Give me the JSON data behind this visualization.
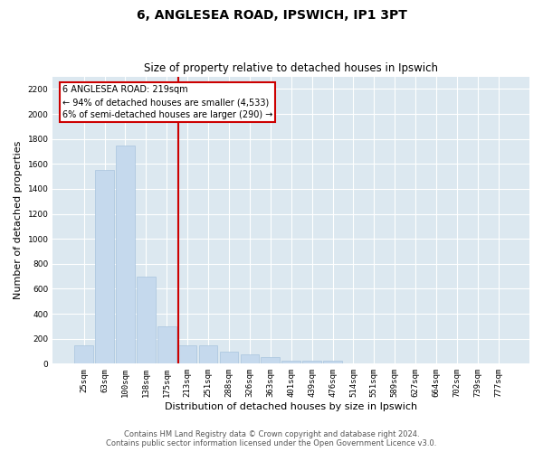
{
  "title": "6, ANGLESEA ROAD, IPSWICH, IP1 3PT",
  "subtitle": "Size of property relative to detached houses in Ipswich",
  "xlabel": "Distribution of detached houses by size in Ipswich",
  "ylabel": "Number of detached properties",
  "categories": [
    "25sqm",
    "63sqm",
    "100sqm",
    "138sqm",
    "175sqm",
    "213sqm",
    "251sqm",
    "288sqm",
    "326sqm",
    "363sqm",
    "401sqm",
    "439sqm",
    "476sqm",
    "514sqm",
    "551sqm",
    "589sqm",
    "627sqm",
    "664sqm",
    "702sqm",
    "739sqm",
    "777sqm"
  ],
  "values": [
    150,
    1550,
    1750,
    700,
    300,
    150,
    150,
    100,
    75,
    50,
    25,
    25,
    25,
    0,
    0,
    0,
    0,
    0,
    0,
    0,
    0
  ],
  "bar_color": "#c5d9ed",
  "bar_edgecolor": "#a8c4de",
  "vline_x_index": 5,
  "vline_color": "#cc0000",
  "annotation_box_color": "#cc0000",
  "annotation_text_line1": "6 ANGLESEA ROAD: 219sqm",
  "annotation_text_line2": "← 94% of detached houses are smaller (4,533)",
  "annotation_text_line3": "6% of semi-detached houses are larger (290) →",
  "ylim": [
    0,
    2300
  ],
  "yticks": [
    0,
    200,
    400,
    600,
    800,
    1000,
    1200,
    1400,
    1600,
    1800,
    2000,
    2200
  ],
  "plot_background": "#dce8f0",
  "footer_line1": "Contains HM Land Registry data © Crown copyright and database right 2024.",
  "footer_line2": "Contains public sector information licensed under the Open Government Licence v3.0.",
  "title_fontsize": 10,
  "subtitle_fontsize": 8.5,
  "tick_fontsize": 6.5,
  "ylabel_fontsize": 8,
  "xlabel_fontsize": 8,
  "annotation_fontsize": 7,
  "footer_fontsize": 6
}
